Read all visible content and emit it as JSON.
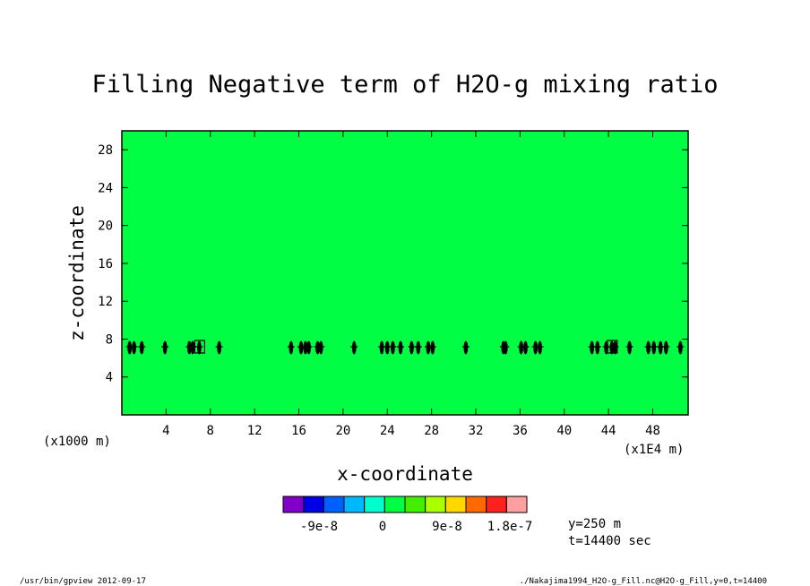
{
  "chart_data": {
    "type": "heatmap",
    "title": "Filling Negative term of H2O-g mixing ratio",
    "xlabel": "x-coordinate",
    "ylabel": "z-coordinate",
    "x_unit": "(x1E4 m)",
    "y_unit": "(x1000 m)",
    "xlim": [
      0,
      51.2
    ],
    "ylim": [
      0,
      30
    ],
    "x_ticks": [
      4,
      8,
      12,
      16,
      20,
      24,
      28,
      32,
      36,
      40,
      44,
      48
    ],
    "y_ticks": [
      4,
      8,
      12,
      16,
      20,
      24,
      28
    ],
    "fill_color": "#00ff44",
    "field_value": 0,
    "marker_z": 7.1,
    "marker_x": [
      0.7,
      1.1,
      1.8,
      3.9,
      6.1,
      6.4,
      7.0,
      8.8,
      15.3,
      16.2,
      16.6,
      16.9,
      17.7,
      18.0,
      21.0,
      23.5,
      24.0,
      24.5,
      25.2,
      26.2,
      26.8,
      27.7,
      28.1,
      31.1,
      34.5,
      34.7,
      36.1,
      36.5,
      37.4,
      37.8,
      42.5,
      43.0,
      43.8,
      44.3,
      44.6,
      45.9,
      47.6,
      48.1,
      48.7,
      49.2,
      50.5
    ],
    "marker_boxes_x": [
      7.0,
      44.3
    ],
    "colorbar": {
      "colors": [
        "#8000c8",
        "#0000e6",
        "#0060ff",
        "#00b8ff",
        "#00ffcc",
        "#00ff44",
        "#44ee00",
        "#aaff00",
        "#ffd800",
        "#ff6a00",
        "#ff2020",
        "#ffa0a0"
      ],
      "labels": [
        "-9e-8",
        "0",
        "9e-8",
        "1.8e-7"
      ]
    },
    "annotations": {
      "y_slice": "y=250 m",
      "time": "t=14400 sec"
    },
    "footer": {
      "left": "/usr/bin/gpview  2012-09-17",
      "right": "./Nakajima1994_H2O-g_Fill.nc@H2O-g_Fill,y=0,t=14400"
    }
  }
}
